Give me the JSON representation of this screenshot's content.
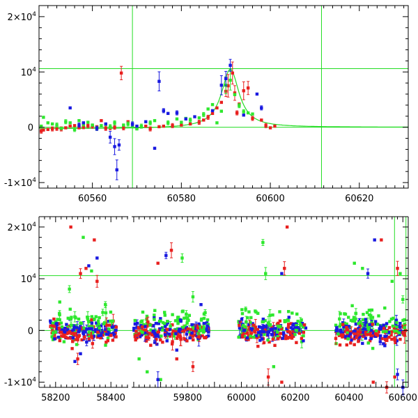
{
  "colors": {
    "red": "#e8201f",
    "green": "#2ee82e",
    "blue": "#1a1ae0",
    "line": "#22dd22",
    "frame": "#000000"
  },
  "chart_data": [
    {
      "type": "scatter",
      "title": "",
      "xlabel": "",
      "ylabel": "",
      "xlim": [
        60548,
        60631
      ],
      "ylim": [
        -11000,
        22000
      ],
      "grid": false,
      "x_ticks": [
        60560,
        60580,
        60600,
        60620
      ],
      "x_tick_labels": [
        "60560",
        "60580",
        "60600",
        "60620"
      ],
      "y_ticks": [
        {
          "value": -10000,
          "label": "-1×10",
          "sup": "4"
        },
        {
          "value": 0,
          "label": "0",
          "sup": ""
        },
        {
          "value": 10000,
          "label": "10",
          "sup": "4"
        },
        {
          "value": 20000,
          "label": "2×10",
          "sup": "4"
        }
      ],
      "hlines": [
        0,
        10600
      ],
      "vlines": [
        60569,
        60611.5
      ],
      "model": {
        "type": "microlensing",
        "t0": 60591,
        "peak": 10600,
        "width": 2.4
      },
      "series": [
        {
          "color": "red",
          "points": [
            [
              60548.5,
              -700
            ],
            [
              60549,
              -500
            ],
            [
              60550,
              -400
            ],
            [
              60551,
              -300
            ],
            [
              60552,
              -200
            ],
            [
              60553,
              -300
            ],
            [
              60554,
              -100
            ],
            [
              60555,
              200
            ],
            [
              60556,
              300
            ],
            [
              60557,
              -100
            ],
            [
              60558,
              100
            ],
            [
              60559,
              300
            ],
            [
              60560,
              200
            ],
            [
              60561,
              100
            ],
            [
              60562,
              1200
            ],
            [
              60563,
              -200
            ],
            [
              60564,
              -100
            ],
            [
              60565,
              0
            ],
            [
              60566.5,
              9800
            ],
            [
              60567,
              -100
            ],
            [
              60568,
              1000
            ],
            [
              60570,
              -100
            ],
            [
              60572,
              200
            ],
            [
              60573,
              -300
            ],
            [
              60575,
              100
            ],
            [
              60576,
              200
            ],
            [
              60578,
              300
            ],
            [
              60580,
              400
            ],
            [
              60582,
              600
            ],
            [
              60584,
              900
            ],
            [
              60585,
              1300
            ],
            [
              60586,
              1800
            ],
            [
              60587,
              2500
            ],
            [
              60588,
              3500
            ],
            [
              60589,
              4500
            ],
            [
              60590,
              6500
            ],
            [
              60590.5,
              7500
            ],
            [
              60591.5,
              9800
            ],
            [
              60592,
              6200
            ],
            [
              60592.5,
              2600
            ],
            [
              60593,
              4200
            ],
            [
              60594,
              6600
            ],
            [
              60595,
              7100
            ],
            [
              60596,
              1600
            ],
            [
              60598,
              1300
            ],
            [
              60599,
              300
            ],
            [
              60600,
              -100
            ],
            [
              60601,
              200
            ]
          ]
        },
        {
          "color": "green",
          "points": [
            [
              60548.5,
              200
            ],
            [
              60549,
              1800
            ],
            [
              60550,
              800
            ],
            [
              60551,
              600
            ],
            [
              60552,
              400
            ],
            [
              60553,
              -200
            ],
            [
              60554,
              1000
            ],
            [
              60555,
              800
            ],
            [
              60556,
              -400
            ],
            [
              60557,
              1200
            ],
            [
              60558,
              600
            ],
            [
              60559,
              900
            ],
            [
              60560,
              400
            ],
            [
              60561,
              -200
            ],
            [
              60562,
              300
            ],
            [
              60563,
              500
            ],
            [
              60564,
              100
            ],
            [
              60565,
              800
            ],
            [
              60567,
              400
            ],
            [
              60568,
              600
            ],
            [
              60569,
              300
            ],
            [
              60570,
              -300
            ],
            [
              60571,
              200
            ],
            [
              60573,
              800
            ],
            [
              60574,
              1200
            ],
            [
              60577,
              800
            ],
            [
              60579,
              1500
            ],
            [
              60580,
              900
            ],
            [
              60581,
              1600
            ],
            [
              60582,
              1300
            ],
            [
              60584,
              1700
            ],
            [
              60585,
              2300
            ],
            [
              60586,
              3300
            ],
            [
              60587,
              4100
            ],
            [
              60588,
              800
            ],
            [
              60589,
              2900
            ],
            [
              60590,
              7600
            ],
            [
              60591,
              8500
            ],
            [
              60592,
              5900
            ],
            [
              60593,
              3900
            ],
            [
              60594,
              2800
            ],
            [
              60595,
              2600
            ],
            [
              60596,
              2400
            ]
          ]
        },
        {
          "color": "blue",
          "points": [
            [
              60555,
              3500
            ],
            [
              60557,
              400
            ],
            [
              60558,
              800
            ],
            [
              60561,
              -200
            ],
            [
              60563,
              600
            ],
            [
              60564,
              -1800
            ],
            [
              60565,
              -3500
            ],
            [
              60565.5,
              -7700
            ],
            [
              60566,
              -3200
            ],
            [
              60569,
              600
            ],
            [
              60570,
              200
            ],
            [
              60572,
              1000
            ],
            [
              60574,
              -3800
            ],
            [
              60575,
              8300
            ],
            [
              60576,
              3000
            ],
            [
              60577,
              2500
            ],
            [
              60579,
              2600
            ],
            [
              60581,
              1500
            ],
            [
              60583,
              1900
            ],
            [
              60587,
              3000
            ],
            [
              60589,
              7600
            ],
            [
              60590,
              8800
            ],
            [
              60591,
              11200
            ],
            [
              60594,
              2200
            ],
            [
              60597,
              6000
            ],
            [
              60598,
              3500
            ]
          ]
        }
      ]
    },
    {
      "type": "scatter",
      "title": "",
      "xlabel": "",
      "ylabel": "",
      "xlim": [
        58140,
        60620
      ],
      "x_break": {
        "from": 58460,
        "to": 59595
      },
      "ylim": [
        -11000,
        22000
      ],
      "grid": false,
      "x_ticks": [
        58200,
        58300,
        58400,
        59800,
        60000,
        60200,
        60400,
        60600
      ],
      "x_tick_labels": [
        "58200",
        "58400",
        "59800",
        "60000",
        "60200",
        "60400",
        "60600"
      ],
      "labelled_x_ticks": [
        58200,
        58400,
        59800,
        60000,
        60200,
        60400,
        60600
      ],
      "y_ticks": [
        {
          "value": -10000,
          "label": "-1×10",
          "sup": "4"
        },
        {
          "value": 0,
          "label": "0",
          "sup": ""
        },
        {
          "value": 10000,
          "label": "10",
          "sup": "4"
        },
        {
          "value": 20000,
          "label": "2×10",
          "sup": "4"
        }
      ],
      "hlines": [
        0,
        10600
      ],
      "vlines": [
        60569,
        60611.5
      ],
      "seasons": [
        [
          58180,
          58420
        ],
        [
          59600,
          59880
        ],
        [
          59990,
          60240
        ],
        [
          60350,
          60610
        ]
      ],
      "outliers": {
        "red": [
          [
            58255,
            20000
          ],
          [
            58290,
            11000
          ],
          [
            58310,
            12000
          ],
          [
            58340,
            17500
          ],
          [
            58350,
            9500
          ],
          [
            58260,
            -3500
          ],
          [
            58280,
            -5500
          ],
          [
            59690,
            13000
          ],
          [
            59740,
            15500
          ],
          [
            59760,
            -5500
          ],
          [
            59820,
            -7000
          ],
          [
            60100,
            -9000
          ],
          [
            60150,
            -10000
          ],
          [
            60170,
            20000
          ],
          [
            60160,
            12000
          ],
          [
            60520,
            17500
          ],
          [
            60580,
            12000
          ],
          [
            60570,
            -9000
          ],
          [
            60490,
            -10000
          ],
          [
            60540,
            -11000
          ]
        ],
        "green": [
          [
            58215,
            5500
          ],
          [
            58250,
            8000
          ],
          [
            58300,
            18000
          ],
          [
            58330,
            11500
          ],
          [
            58380,
            5000
          ],
          [
            59620,
            -5500
          ],
          [
            59650,
            -8000
          ],
          [
            59700,
            -9500
          ],
          [
            59780,
            14000
          ],
          [
            59820,
            6500
          ],
          [
            60080,
            17000
          ],
          [
            60120,
            -7000
          ],
          [
            60090,
            11000
          ],
          [
            60420,
            13000
          ],
          [
            60450,
            12000
          ],
          [
            60560,
            9500
          ],
          [
            60590,
            11000
          ],
          [
            60600,
            6000
          ]
        ],
        "blue": [
          [
            58270,
            -6000
          ],
          [
            58290,
            -4500
          ],
          [
            58320,
            12500
          ],
          [
            58350,
            14000
          ],
          [
            59690,
            -9500
          ],
          [
            59720,
            14500
          ],
          [
            59760,
            -3800
          ],
          [
            59850,
            5000
          ],
          [
            60150,
            11000
          ],
          [
            60450,
            -2500
          ],
          [
            60470,
            11000
          ],
          [
            60495,
            17500
          ],
          [
            60580,
            -8500
          ],
          [
            60600,
            -11000
          ]
        ]
      }
    }
  ]
}
